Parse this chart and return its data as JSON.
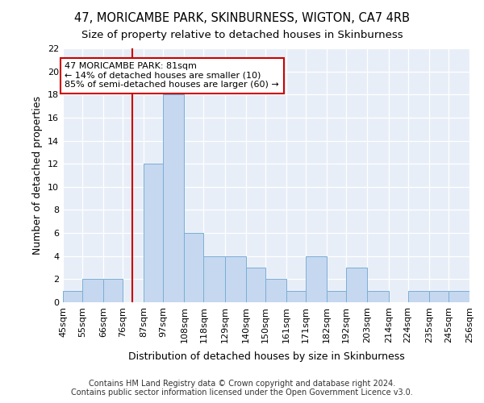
{
  "title": "47, MORICAMBE PARK, SKINBURNESS, WIGTON, CA7 4RB",
  "subtitle": "Size of property relative to detached houses in Skinburness",
  "xlabel": "Distribution of detached houses by size in Skinburness",
  "ylabel": "Number of detached properties",
  "categories": [
    "45sqm",
    "55sqm",
    "66sqm",
    "76sqm",
    "87sqm",
    "97sqm",
    "108sqm",
    "118sqm",
    "129sqm",
    "140sqm",
    "150sqm",
    "161sqm",
    "171sqm",
    "182sqm",
    "192sqm",
    "203sqm",
    "214sqm",
    "224sqm",
    "235sqm",
    "245sqm",
    "256sqm"
  ],
  "bar_edges": [
    45,
    55,
    66,
    76,
    87,
    97,
    108,
    118,
    129,
    140,
    150,
    161,
    171,
    182,
    192,
    203,
    214,
    224,
    235,
    245,
    256
  ],
  "values": [
    1,
    2,
    2,
    0,
    12,
    18,
    6,
    4,
    4,
    3,
    2,
    1,
    4,
    1,
    3,
    1,
    0,
    1,
    1,
    1
  ],
  "bar_color": "#c5d8f0",
  "bar_edgecolor": "#7baed4",
  "vline_x": 81,
  "vline_color": "#cc0000",
  "annotation_line1": "47 MORICAMBE PARK: 81sqm",
  "annotation_line2": "← 14% of detached houses are smaller (10)",
  "annotation_line3": "85% of semi-detached houses are larger (60) →",
  "annotation_box_color": "white",
  "annotation_box_edgecolor": "#cc0000",
  "ylim": [
    0,
    22
  ],
  "yticks": [
    0,
    2,
    4,
    6,
    8,
    10,
    12,
    14,
    16,
    18,
    20,
    22
  ],
  "footer": "Contains HM Land Registry data © Crown copyright and database right 2024.\nContains public sector information licensed under the Open Government Licence v3.0.",
  "bg_color": "#ffffff",
  "plot_bg_color": "#e8eef8",
  "title_fontsize": 10.5,
  "subtitle_fontsize": 9.5,
  "footer_fontsize": 7,
  "label_fontsize": 9,
  "tick_fontsize": 8,
  "annotation_fontsize": 8
}
